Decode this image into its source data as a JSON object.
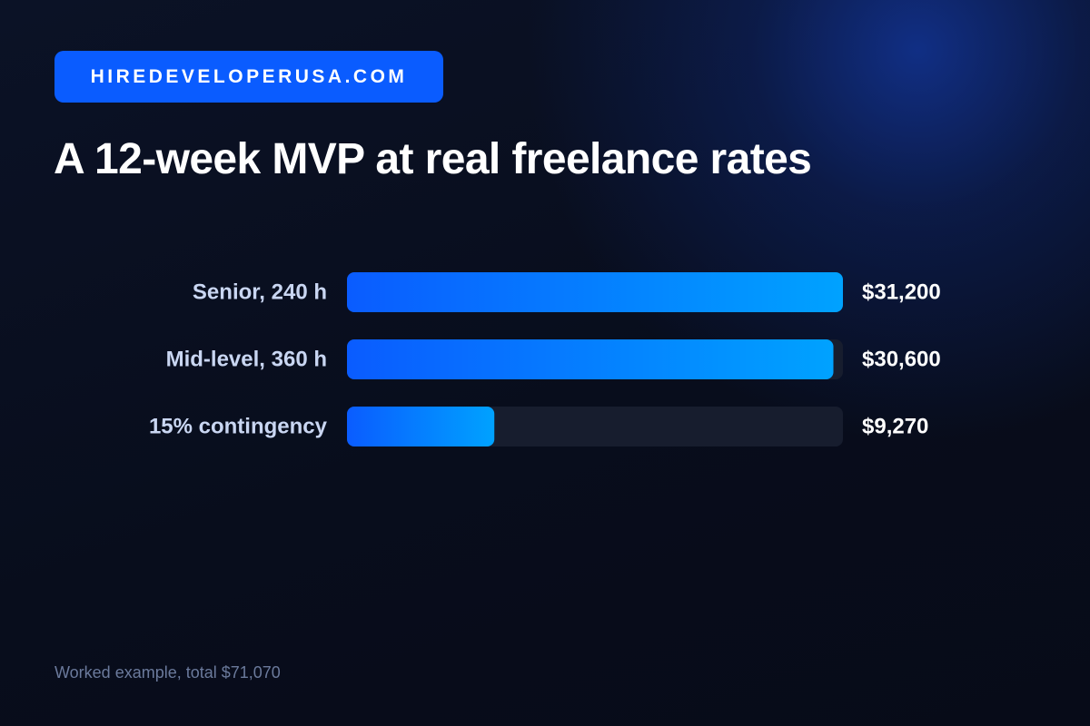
{
  "brand": {
    "label": "HIREDEVELOPERUSA.COM"
  },
  "title": "A 12-week MVP at real freelance rates",
  "footnote": "Worked example, total $71,070",
  "colors": {
    "background": "#0a0f1f",
    "brand": "#0a5cff",
    "bar_start": "#0a5cff",
    "bar_end": "#00a2ff",
    "track": "#171d2e",
    "category_label": "#c9d6f2",
    "value_label": "#ffffff",
    "footnote": "#6b7a9c"
  },
  "chart_data": {
    "type": "bar",
    "orientation": "horizontal",
    "categories": [
      "Senior, 240 h",
      "Mid-level, 360 h",
      "15% contingency"
    ],
    "values": [
      31200,
      30600,
      9270
    ],
    "value_labels": [
      "$31,200",
      "$30,600",
      "$9,270"
    ],
    "title": "A 12-week MVP at real freelance rates",
    "xlim": [
      0,
      31200
    ],
    "grid": false,
    "legend": "none"
  }
}
